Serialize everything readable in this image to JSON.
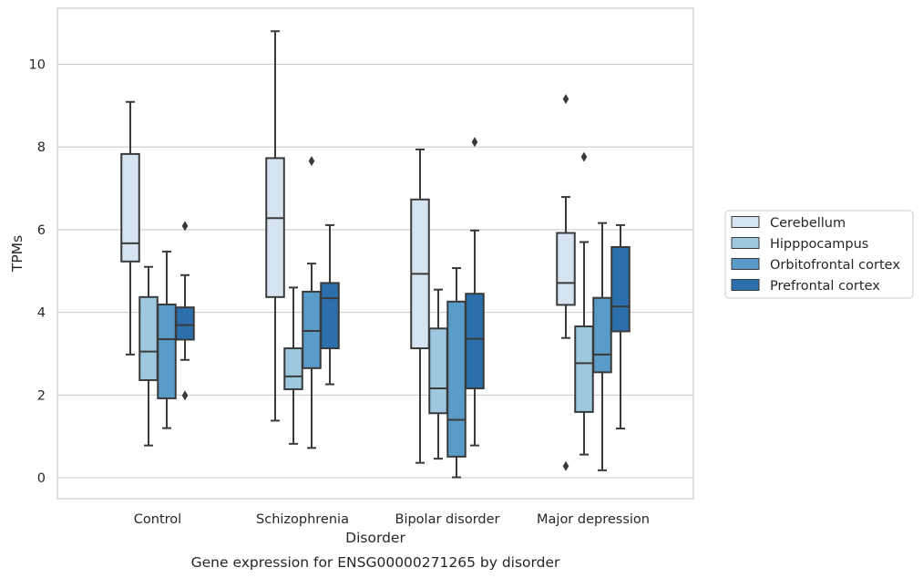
{
  "caption": "Gene expression for ENSG00000271265 by disorder",
  "chart_data": {
    "type": "box",
    "title": "",
    "xlabel": "Disorder",
    "ylabel": "TPMs",
    "ylim": [
      -0.5,
      11.35
    ],
    "yticks": [
      0,
      2,
      4,
      6,
      8,
      10
    ],
    "grid": "horizontal",
    "legend_placement": "right",
    "categories": [
      "Control",
      "Schizophrenia",
      "Bipolar disorder",
      "Major depression"
    ],
    "series": [
      {
        "name": "Cerebellum",
        "color": "#d6e4f2",
        "boxes": [
          {
            "whislo": 2.98,
            "q1": 5.23,
            "med": 5.67,
            "q3": 7.83,
            "whishi": 9.09,
            "fliers": []
          },
          {
            "whislo": 1.38,
            "q1": 4.37,
            "med": 6.28,
            "q3": 7.73,
            "whishi": 10.8,
            "fliers": []
          },
          {
            "whislo": 0.36,
            "q1": 3.13,
            "med": 4.93,
            "q3": 6.73,
            "whishi": 7.94,
            "fliers": []
          },
          {
            "whislo": 3.38,
            "q1": 4.18,
            "med": 4.71,
            "q3": 5.92,
            "whishi": 6.79,
            "fliers": [
              9.16,
              0.28
            ]
          }
        ]
      },
      {
        "name": "Hipppocampus",
        "color": "#9dc8e0",
        "boxes": [
          {
            "whislo": 0.78,
            "q1": 2.36,
            "med": 3.05,
            "q3": 4.37,
            "whishi": 5.1,
            "fliers": []
          },
          {
            "whislo": 0.82,
            "q1": 2.14,
            "med": 2.45,
            "q3": 3.13,
            "whishi": 4.6,
            "fliers": []
          },
          {
            "whislo": 0.46,
            "q1": 1.56,
            "med": 2.16,
            "q3": 3.61,
            "whishi": 4.55,
            "fliers": []
          },
          {
            "whislo": 0.56,
            "q1": 1.59,
            "med": 2.77,
            "q3": 3.66,
            "whishi": 5.7,
            "fliers": [
              7.76
            ]
          }
        ]
      },
      {
        "name": "Orbitofrontal cortex",
        "color": "#5a9cc9",
        "boxes": [
          {
            "whislo": 1.2,
            "q1": 1.92,
            "med": 3.35,
            "q3": 4.19,
            "whishi": 5.47,
            "fliers": []
          },
          {
            "whislo": 0.72,
            "q1": 2.65,
            "med": 3.55,
            "q3": 4.5,
            "whishi": 5.18,
            "fliers": [
              7.66
            ]
          },
          {
            "whislo": 0.01,
            "q1": 0.51,
            "med": 1.4,
            "q3": 4.26,
            "whishi": 5.07,
            "fliers": []
          },
          {
            "whislo": 0.18,
            "q1": 2.55,
            "med": 2.98,
            "q3": 4.35,
            "whishi": 6.16,
            "fliers": []
          }
        ]
      },
      {
        "name": "Prefrontal cortex",
        "color": "#2c6fad",
        "boxes": [
          {
            "whislo": 2.85,
            "q1": 3.34,
            "med": 3.69,
            "q3": 4.12,
            "whishi": 4.9,
            "fliers": [
              6.09,
              1.99
            ]
          },
          {
            "whislo": 2.26,
            "q1": 3.13,
            "med": 4.34,
            "q3": 4.71,
            "whishi": 6.11,
            "fliers": []
          },
          {
            "whislo": 0.78,
            "q1": 2.16,
            "med": 3.36,
            "q3": 4.45,
            "whishi": 5.98,
            "fliers": [
              8.12
            ]
          },
          {
            "whislo": 1.19,
            "q1": 3.54,
            "med": 4.14,
            "q3": 5.58,
            "whishi": 6.11,
            "fliers": []
          }
        ]
      }
    ]
  }
}
